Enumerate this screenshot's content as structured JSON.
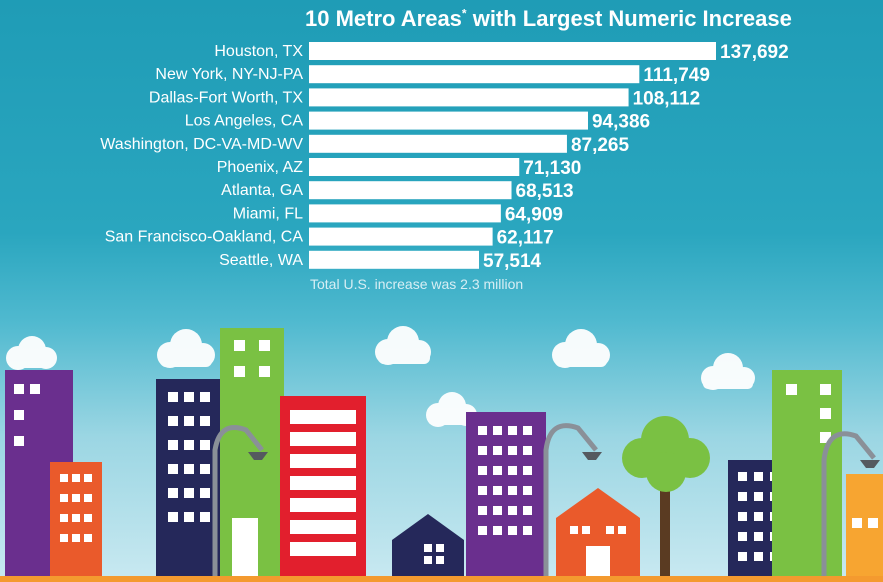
{
  "title": {
    "main_before": "10 Metro Areas",
    "star": "*",
    "main_after": " with Largest Numeric Increase"
  },
  "footnote": "Total U.S. increase was 2.3 million",
  "colors": {
    "bar": "#ffffff",
    "label": "#ffffff",
    "sky": "#2aa6bf"
  },
  "chart_data": {
    "type": "bar",
    "orientation": "horizontal",
    "categories": [
      "Houston, TX",
      "New York, NY-NJ-PA",
      "Dallas-Fort Worth, TX",
      "Los Angeles, CA",
      "Washington, DC-VA-MD-WV",
      "Phoenix, AZ",
      "Atlanta, GA",
      "Miami, FL",
      "San Francisco-Oakland, CA",
      "Seattle, WA"
    ],
    "values": [
      137692,
      111749,
      108112,
      94386,
      87265,
      71130,
      68513,
      64909,
      62117,
      57514
    ],
    "value_labels": [
      "137,692",
      "111,749",
      "108,112",
      "94,386",
      "87,265",
      "71,130",
      "68,513",
      "64,909",
      "62,117",
      "57,514"
    ],
    "xlim": [
      0,
      137692
    ],
    "grid": false,
    "legend": "none"
  }
}
